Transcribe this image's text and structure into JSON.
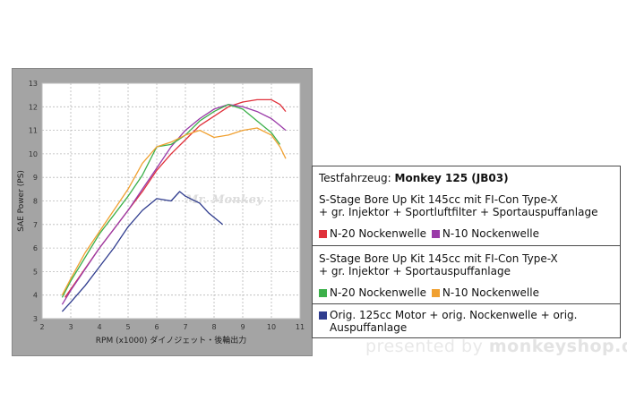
{
  "chart_data": {
    "type": "line",
    "xlabel": "RPM (x1000) ダイノジェット・後輪出力",
    "ylabel": "SAE Power (PS)",
    "xlim": [
      2,
      11
    ],
    "ylim": [
      3,
      13
    ],
    "x_ticks": [
      "2",
      "3",
      "4",
      "5",
      "6",
      "7",
      "8",
      "9",
      "10",
      "11"
    ],
    "y_ticks": [
      "3",
      "4",
      "5",
      "6",
      "7",
      "8",
      "9",
      "10",
      "11",
      "12",
      "13"
    ],
    "grid": true,
    "watermark": "Mr. Monkey",
    "series": [
      {
        "name": "N-20 Nockenwelle (Sportluftfilter)",
        "color": "#e0303a",
        "points": [
          [
            2.8,
            3.9
          ],
          [
            3.2,
            4.6
          ],
          [
            3.6,
            5.3
          ],
          [
            4.0,
            6.0
          ],
          [
            4.5,
            6.8
          ],
          [
            5.0,
            7.6
          ],
          [
            5.5,
            8.4
          ],
          [
            6.0,
            9.3
          ],
          [
            6.5,
            10.0
          ],
          [
            7.0,
            10.6
          ],
          [
            7.5,
            11.2
          ],
          [
            8.0,
            11.6
          ],
          [
            8.5,
            12.0
          ],
          [
            9.0,
            12.2
          ],
          [
            9.5,
            12.3
          ],
          [
            10.0,
            12.3
          ],
          [
            10.3,
            12.1
          ],
          [
            10.5,
            11.8
          ]
        ]
      },
      {
        "name": "N-10 Nockenwelle (Sportluftfilter)",
        "color": "#9a3aa8",
        "points": [
          [
            2.7,
            3.6
          ],
          [
            3.0,
            4.2
          ],
          [
            3.5,
            5.1
          ],
          [
            4.0,
            6.0
          ],
          [
            4.5,
            6.8
          ],
          [
            5.0,
            7.6
          ],
          [
            5.5,
            8.5
          ],
          [
            6.0,
            9.4
          ],
          [
            6.5,
            10.3
          ],
          [
            7.0,
            11.0
          ],
          [
            7.5,
            11.5
          ],
          [
            8.0,
            11.9
          ],
          [
            8.5,
            12.1
          ],
          [
            9.0,
            12.0
          ],
          [
            9.5,
            11.8
          ],
          [
            10.0,
            11.5
          ],
          [
            10.3,
            11.2
          ],
          [
            10.5,
            11.0
          ]
        ]
      },
      {
        "name": "N-20 Nockenwelle",
        "color": "#3cb04a",
        "points": [
          [
            2.7,
            3.9
          ],
          [
            3.0,
            4.6
          ],
          [
            3.5,
            5.6
          ],
          [
            4.0,
            6.6
          ],
          [
            4.5,
            7.4
          ],
          [
            5.0,
            8.2
          ],
          [
            5.5,
            9.1
          ],
          [
            6.0,
            10.3
          ],
          [
            6.5,
            10.4
          ],
          [
            7.0,
            10.8
          ],
          [
            7.5,
            11.4
          ],
          [
            8.0,
            11.8
          ],
          [
            8.5,
            12.1
          ],
          [
            9.0,
            11.9
          ],
          [
            9.5,
            11.4
          ],
          [
            10.0,
            10.9
          ],
          [
            10.3,
            10.4
          ]
        ]
      },
      {
        "name": "N-10 Nockenwelle",
        "color": "#f0a030",
        "points": [
          [
            2.7,
            4.0
          ],
          [
            3.0,
            4.7
          ],
          [
            3.5,
            5.8
          ],
          [
            4.0,
            6.7
          ],
          [
            4.5,
            7.6
          ],
          [
            5.0,
            8.5
          ],
          [
            5.5,
            9.6
          ],
          [
            6.0,
            10.3
          ],
          [
            6.5,
            10.5
          ],
          [
            7.0,
            10.8
          ],
          [
            7.5,
            11.0
          ],
          [
            8.0,
            10.7
          ],
          [
            8.5,
            10.8
          ],
          [
            9.0,
            11.0
          ],
          [
            9.5,
            11.1
          ],
          [
            10.0,
            10.8
          ],
          [
            10.3,
            10.3
          ],
          [
            10.5,
            9.8
          ]
        ]
      },
      {
        "name": "Orig. 125cc Motor",
        "color": "#2f3c8e",
        "points": [
          [
            2.7,
            3.3
          ],
          [
            3.0,
            3.7
          ],
          [
            3.5,
            4.4
          ],
          [
            4.0,
            5.2
          ],
          [
            4.5,
            6.0
          ],
          [
            5.0,
            6.9
          ],
          [
            5.5,
            7.6
          ],
          [
            6.0,
            8.1
          ],
          [
            6.5,
            8.0
          ],
          [
            6.8,
            8.4
          ],
          [
            7.0,
            8.2
          ],
          [
            7.5,
            7.9
          ],
          [
            7.8,
            7.5
          ],
          [
            8.0,
            7.3
          ],
          [
            8.3,
            7.0
          ]
        ]
      }
    ]
  },
  "legend": {
    "vehicle_label": "Testfahrzeug: ",
    "vehicle_name": "Monkey 125 (JB03)",
    "group1_line1": "S-Stage Bore Up Kit 145cc mit FI-Con Type-X",
    "group1_line2": "+ gr. Injektor + Sportluftfilter + Sportauspuffanlage",
    "group1_a": "N-20 Nockenwelle",
    "group1_b": "N-10 Nockenwelle",
    "group2_line1": "S-Stage Bore Up Kit 145cc mit FI-Con Type-X",
    "group2_line2": "+ gr. Injektor + Sportauspuffanlage",
    "group2_a": "N-20 Nockenwelle",
    "group2_b": "N-10 Nockenwelle",
    "orig_line1": "Orig. 125cc Motor + orig. Nockenwelle + orig.",
    "orig_line2": "Auspuffanlage"
  },
  "footer": {
    "prefix": "presented by ",
    "brand": "monkeyshop.de"
  }
}
